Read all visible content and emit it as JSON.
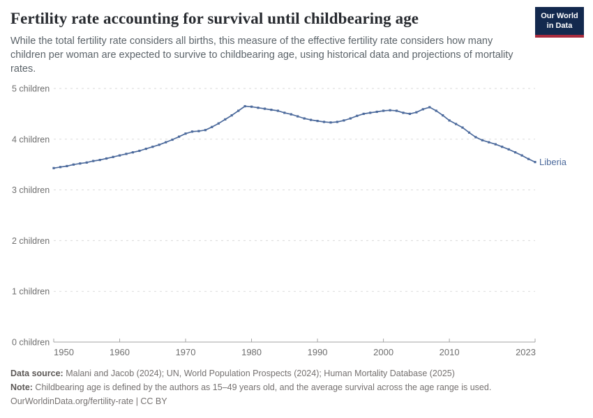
{
  "header": {
    "title": "Fertility rate accounting for survival until childbearing age",
    "subtitle": "While the total fertility rate considers all births, this measure of the effective fertility rate considers how many children per woman are expected to survive to childbearing age, using historical data and projections of mortality rates.",
    "logo": {
      "line1": "Our World",
      "line2": "in Data"
    }
  },
  "colors": {
    "line": "#4C6A9C",
    "gridline": "#dadada",
    "axis": "#a3a3a3",
    "axis_text": "#6e6e6e"
  },
  "chart_data": {
    "type": "line",
    "title": "Fertility rate accounting for survival until childbearing age",
    "entity_label": "Liberia",
    "xlabel": "",
    "ylabel": "",
    "xlim": [
      1950,
      2023
    ],
    "ylim": [
      0,
      5
    ],
    "grid": true,
    "legend_position": "end-of-line",
    "xticks": [
      1950,
      1960,
      1970,
      1980,
      1990,
      2000,
      2010,
      2023
    ],
    "yticks": [
      {
        "value": 0,
        "label": "0 children"
      },
      {
        "value": 1,
        "label": "1 children"
      },
      {
        "value": 2,
        "label": "2 children"
      },
      {
        "value": 3,
        "label": "3 children"
      },
      {
        "value": 4,
        "label": "4 children"
      },
      {
        "value": 5,
        "label": "5 children"
      }
    ],
    "x": [
      1950,
      1951,
      1952,
      1953,
      1954,
      1955,
      1956,
      1957,
      1958,
      1959,
      1960,
      1961,
      1962,
      1963,
      1964,
      1965,
      1966,
      1967,
      1968,
      1969,
      1970,
      1971,
      1972,
      1973,
      1974,
      1975,
      1976,
      1977,
      1978,
      1979,
      1980,
      1981,
      1982,
      1983,
      1984,
      1985,
      1986,
      1987,
      1988,
      1989,
      1990,
      1991,
      1992,
      1993,
      1994,
      1995,
      1996,
      1997,
      1998,
      1999,
      2000,
      2001,
      2002,
      2003,
      2004,
      2005,
      2006,
      2007,
      2008,
      2009,
      2010,
      2011,
      2012,
      2013,
      2014,
      2015,
      2016,
      2017,
      2018,
      2019,
      2020,
      2021,
      2022,
      2023
    ],
    "series": [
      {
        "name": "Liberia",
        "color": "#4C6A9C",
        "values": [
          3.43,
          3.45,
          3.47,
          3.5,
          3.52,
          3.54,
          3.57,
          3.59,
          3.62,
          3.65,
          3.68,
          3.71,
          3.74,
          3.77,
          3.81,
          3.85,
          3.89,
          3.94,
          3.99,
          4.05,
          4.11,
          4.15,
          4.16,
          4.18,
          4.24,
          4.31,
          4.39,
          4.47,
          4.56,
          4.65,
          4.64,
          4.62,
          4.6,
          4.58,
          4.56,
          4.52,
          4.49,
          4.45,
          4.41,
          4.38,
          4.36,
          4.34,
          4.33,
          4.34,
          4.37,
          4.41,
          4.46,
          4.5,
          4.52,
          4.54,
          4.56,
          4.57,
          4.56,
          4.52,
          4.5,
          4.53,
          4.59,
          4.63,
          4.56,
          4.47,
          4.37,
          4.3,
          4.23,
          4.13,
          4.04,
          3.98,
          3.94,
          3.9,
          3.85,
          3.8,
          3.74,
          3.68,
          3.61,
          3.55
        ]
      }
    ]
  },
  "footer": {
    "datasource_label": "Data source:",
    "datasource": " Malani and Jacob (2024); UN, World Population Prospects (2024); Human Mortality Database (2025)",
    "note_label": "Note:",
    "note": " Childbearing age is defined by the authors as 15–49 years old, and the average survival across the age range is used.",
    "url": "OurWorldinData.org/fertility-rate | CC BY"
  }
}
